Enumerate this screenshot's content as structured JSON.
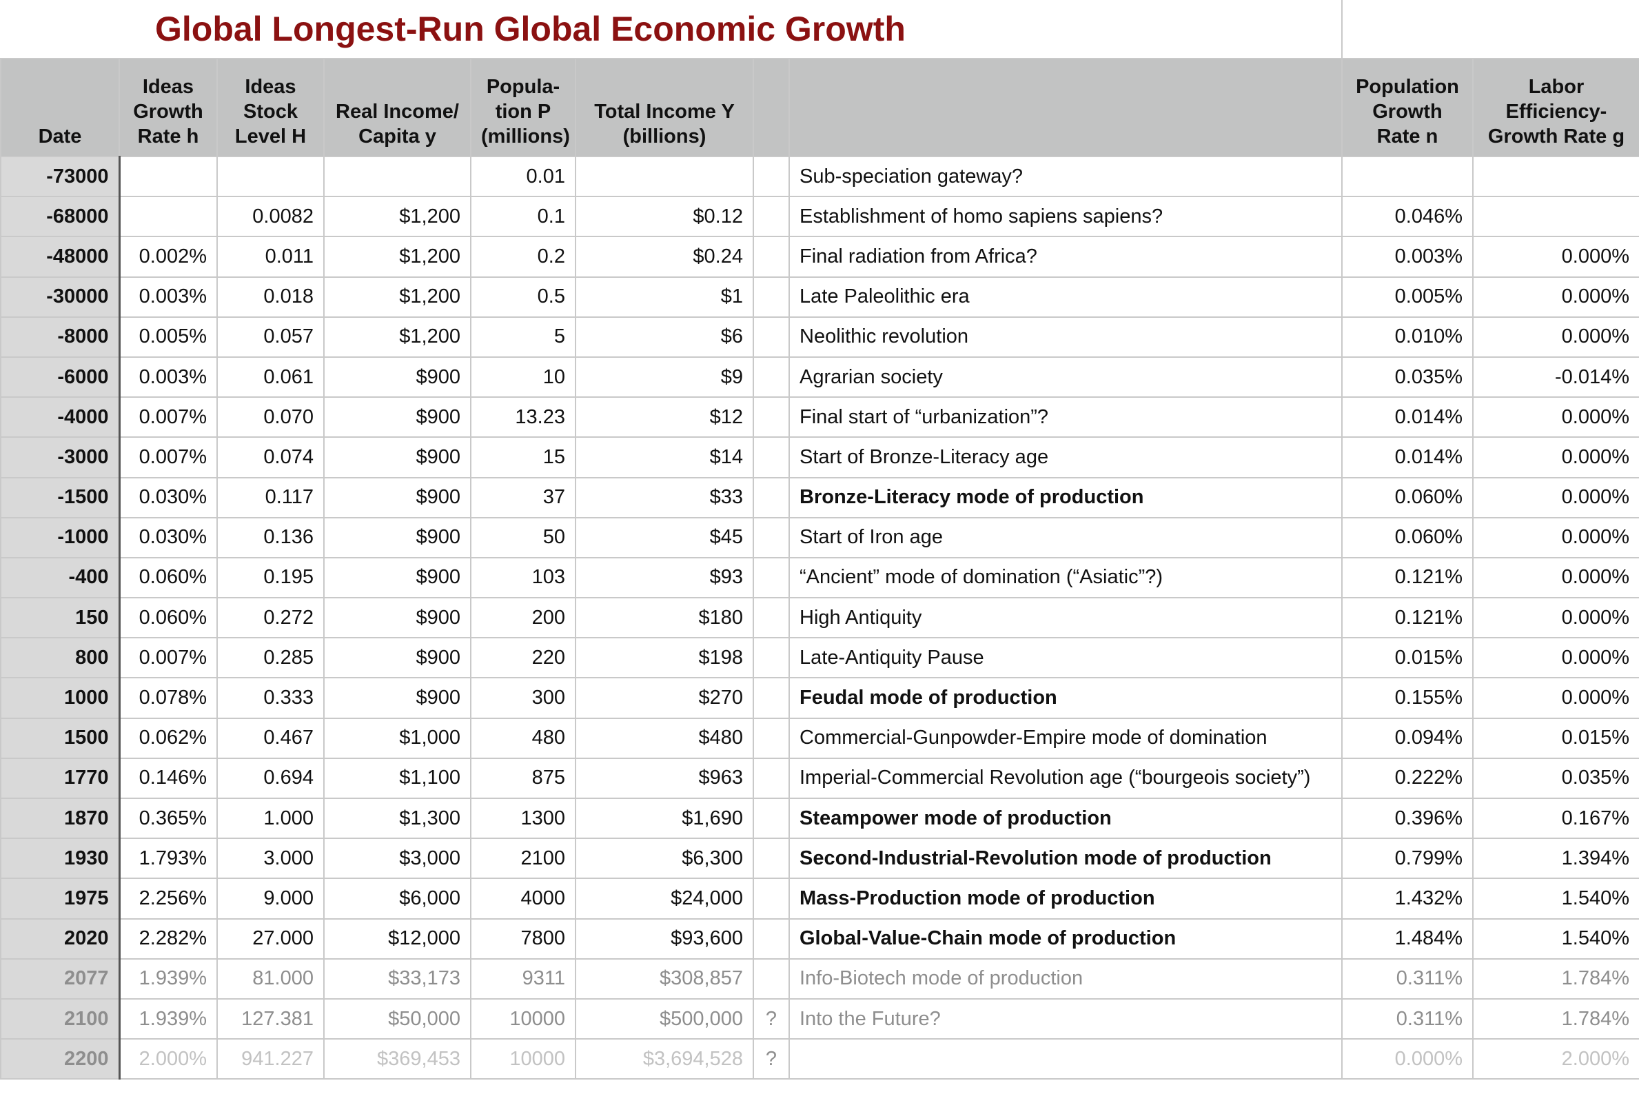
{
  "title": "Global Longest-Run Global Economic Growth",
  "headers": [
    "Date",
    "Ideas Growth Rate h",
    "Ideas Stock Level H",
    "Real Income/ Capita y",
    "Popula-tion P (millions)",
    "Total Income Y (billions)",
    "",
    "",
    "Population Growth Rate n",
    "Labor Efficiency-Growth Rate g"
  ],
  "rows": [
    {
      "date": "-73000",
      "h": "",
      "H": "",
      "y": "",
      "P": "0.01",
      "Y": "",
      "q": "",
      "event": "Sub-speciation gateway?",
      "n": "",
      "g": "",
      "bold": false,
      "style": ""
    },
    {
      "date": "-68000",
      "h": "",
      "H": "0.0082",
      "y": "$1,200",
      "P": "0.1",
      "Y": "$0.12",
      "q": "",
      "event": "Establishment of homo sapiens sapiens?",
      "n": "0.046%",
      "g": "",
      "bold": false,
      "style": ""
    },
    {
      "date": "-48000",
      "h": "0.002%",
      "H": "0.011",
      "y": "$1,200",
      "P": "0.2",
      "Y": "$0.24",
      "q": "",
      "event": "Final radiation from Africa?",
      "n": "0.003%",
      "g": "0.000%",
      "bold": false,
      "style": ""
    },
    {
      "date": "-30000",
      "h": "0.003%",
      "H": "0.018",
      "y": "$1,200",
      "P": "0.5",
      "Y": "$1",
      "q": "",
      "event": "Late Paleolithic era",
      "n": "0.005%",
      "g": "0.000%",
      "bold": false,
      "style": ""
    },
    {
      "date": "-8000",
      "h": "0.005%",
      "H": "0.057",
      "y": "$1,200",
      "P": "5",
      "Y": "$6",
      "q": "",
      "event": "Neolithic revolution",
      "n": "0.010%",
      "g": "0.000%",
      "bold": false,
      "style": ""
    },
    {
      "date": "-6000",
      "h": "0.003%",
      "H": "0.061",
      "y": "$900",
      "P": "10",
      "Y": "$9",
      "q": "",
      "event": "Agrarian society",
      "n": "0.035%",
      "g": "-0.014%",
      "bold": false,
      "style": ""
    },
    {
      "date": "-4000",
      "h": "0.007%",
      "H": "0.070",
      "y": "$900",
      "P": "13.23",
      "Y": "$12",
      "q": "",
      "event": "Final start of “urbanization”?",
      "n": "0.014%",
      "g": "0.000%",
      "bold": false,
      "style": ""
    },
    {
      "date": "-3000",
      "h": "0.007%",
      "H": "0.074",
      "y": "$900",
      "P": "15",
      "Y": "$14",
      "q": "",
      "event": "Start of Bronze-Literacy age",
      "n": "0.014%",
      "g": "0.000%",
      "bold": false,
      "style": ""
    },
    {
      "date": "-1500",
      "h": "0.030%",
      "H": "0.117",
      "y": "$900",
      "P": "37",
      "Y": "$33",
      "q": "",
      "event": "Bronze-Literacy mode of production",
      "n": "0.060%",
      "g": "0.000%",
      "bold": true,
      "style": ""
    },
    {
      "date": "-1000",
      "h": "0.030%",
      "H": "0.136",
      "y": "$900",
      "P": "50",
      "Y": "$45",
      "q": "",
      "event": "Start of Iron age",
      "n": "0.060%",
      "g": "0.000%",
      "bold": false,
      "style": ""
    },
    {
      "date": "-400",
      "h": "0.060%",
      "H": "0.195",
      "y": "$900",
      "P": "103",
      "Y": "$93",
      "q": "",
      "event": "“Ancient” mode of domination (“Asiatic”?)",
      "n": "0.121%",
      "g": "0.000%",
      "bold": false,
      "style": ""
    },
    {
      "date": "150",
      "h": "0.060%",
      "H": "0.272",
      "y": "$900",
      "P": "200",
      "Y": "$180",
      "q": "",
      "event": "High Antiquity",
      "n": "0.121%",
      "g": "0.000%",
      "bold": false,
      "style": ""
    },
    {
      "date": "800",
      "h": "0.007%",
      "H": "0.285",
      "y": "$900",
      "P": "220",
      "Y": "$198",
      "q": "",
      "event": "Late-Antiquity Pause",
      "n": "0.015%",
      "g": "0.000%",
      "bold": false,
      "style": ""
    },
    {
      "date": "1000",
      "h": "0.078%",
      "H": "0.333",
      "y": "$900",
      "P": "300",
      "Y": "$270",
      "q": "",
      "event": "Feudal mode of production",
      "n": "0.155%",
      "g": "0.000%",
      "bold": true,
      "style": ""
    },
    {
      "date": "1500",
      "h": "0.062%",
      "H": "0.467",
      "y": "$1,000",
      "P": "480",
      "Y": "$480",
      "q": "",
      "event": "Commercial-Gunpowder-Empire mode of domination",
      "n": "0.094%",
      "g": "0.015%",
      "bold": false,
      "style": ""
    },
    {
      "date": "1770",
      "h": "0.146%",
      "H": "0.694",
      "y": "$1,100",
      "P": "875",
      "Y": "$963",
      "q": "",
      "event": "Imperial-Commercial Revolution age (“bourgeois society”)",
      "n": "0.222%",
      "g": "0.035%",
      "bold": false,
      "style": ""
    },
    {
      "date": "1870",
      "h": "0.365%",
      "H": "1.000",
      "y": "$1,300",
      "P": "1300",
      "Y": "$1,690",
      "q": "",
      "event": "Steampower mode of production",
      "n": "0.396%",
      "g": "0.167%",
      "bold": true,
      "style": ""
    },
    {
      "date": "1930",
      "h": "1.793%",
      "H": "3.000",
      "y": "$3,000",
      "P": "2100",
      "Y": "$6,300",
      "q": "",
      "event": "Second-Industrial-Revolution mode of production",
      "n": "0.799%",
      "g": "1.394%",
      "bold": true,
      "style": ""
    },
    {
      "date": "1975",
      "h": "2.256%",
      "H": "9.000",
      "y": "$6,000",
      "P": "4000",
      "Y": "$24,000",
      "q": "",
      "event": "Mass-Production mode of production",
      "n": "1.432%",
      "g": "1.540%",
      "bold": true,
      "style": ""
    },
    {
      "date": "2020",
      "h": "2.282%",
      "H": "27.000",
      "y": "$12,000",
      "P": "7800",
      "Y": "$93,600",
      "q": "",
      "event": "Global-Value-Chain mode of production",
      "n": "1.484%",
      "g": "1.540%",
      "bold": true,
      "style": ""
    },
    {
      "date": "2077",
      "h": "1.939%",
      "H": "81.000",
      "y": "$33,173",
      "P": "9311",
      "Y": "$308,857",
      "q": "",
      "event": "Info-Biotech mode of production",
      "n": "0.311%",
      "g": "1.784%",
      "bold": false,
      "style": "proj"
    },
    {
      "date": "2100",
      "h": "1.939%",
      "H": "127.381",
      "y": "$50,000",
      "P": "10000",
      "Y": "$500,000",
      "q": "?",
      "event": "Into the Future?",
      "n": "0.311%",
      "g": "1.784%",
      "bold": false,
      "style": "proj"
    },
    {
      "date": "2200",
      "h": "2.000%",
      "H": "941.227",
      "y": "$369,453",
      "P": "10000",
      "Y": "$3,694,528",
      "q": "?",
      "event": "",
      "n": "0.000%",
      "g": "2.000%",
      "bold": false,
      "style": "proj2"
    }
  ]
}
